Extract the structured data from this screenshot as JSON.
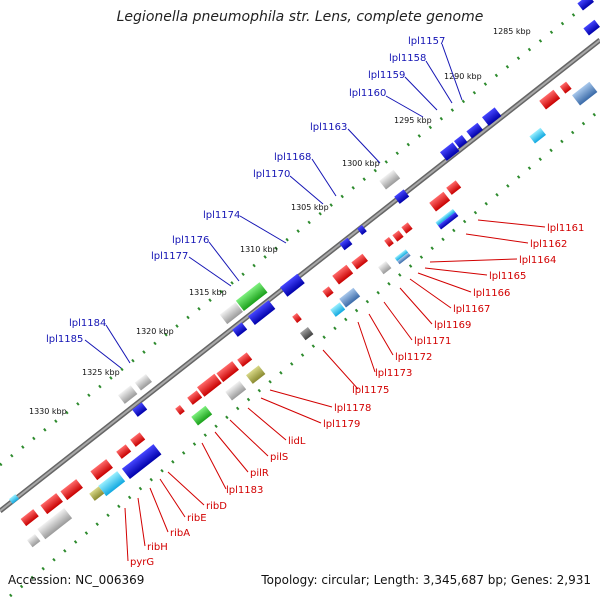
{
  "title": "Legionella pneumophila str. Lens, complete genome",
  "footer": {
    "accession": "Accession: NC_006369",
    "summary": "Topology: circular; Length: 3,345,687 bp; Genes: 2,931"
  },
  "colors": {
    "backbone": "#777777",
    "tick": "#2e8b2e",
    "forward_gene": "#e8141c",
    "reverse_gene": "#1a1ad9",
    "other_gene": "#bdbdbd",
    "label_blue": "#1414b4",
    "label_red": "#d20000"
  },
  "kbp_ticks": [
    "1285 kbp",
    "1290 kbp",
    "1295 kbp",
    "1300 kbp",
    "1305 kbp",
    "1310 kbp",
    "1315 kbp",
    "1320 kbp",
    "1325 kbp",
    "1330 kbp"
  ],
  "blue_labels": [
    "lpl1157",
    "lpl1158",
    "lpl1159",
    "lpl1160",
    "lpl1163",
    "lpl1168",
    "lpl1170",
    "lpl1174",
    "lpl1176",
    "lpl1177",
    "lpl1184",
    "lpl1185"
  ],
  "red_labels": [
    "lpl1161",
    "lpl1162",
    "lpl1164",
    "lpl1165",
    "lpl1166",
    "lpl1167",
    "lpl1169",
    "lpl1171",
    "lpl1172",
    "lpl1173",
    "lpl1175",
    "lpl1178",
    "lpl1179",
    "lidL",
    "pilS",
    "pilR",
    "lpl1183",
    "ribD",
    "ribE",
    "ribA",
    "ribH",
    "pyrG"
  ]
}
